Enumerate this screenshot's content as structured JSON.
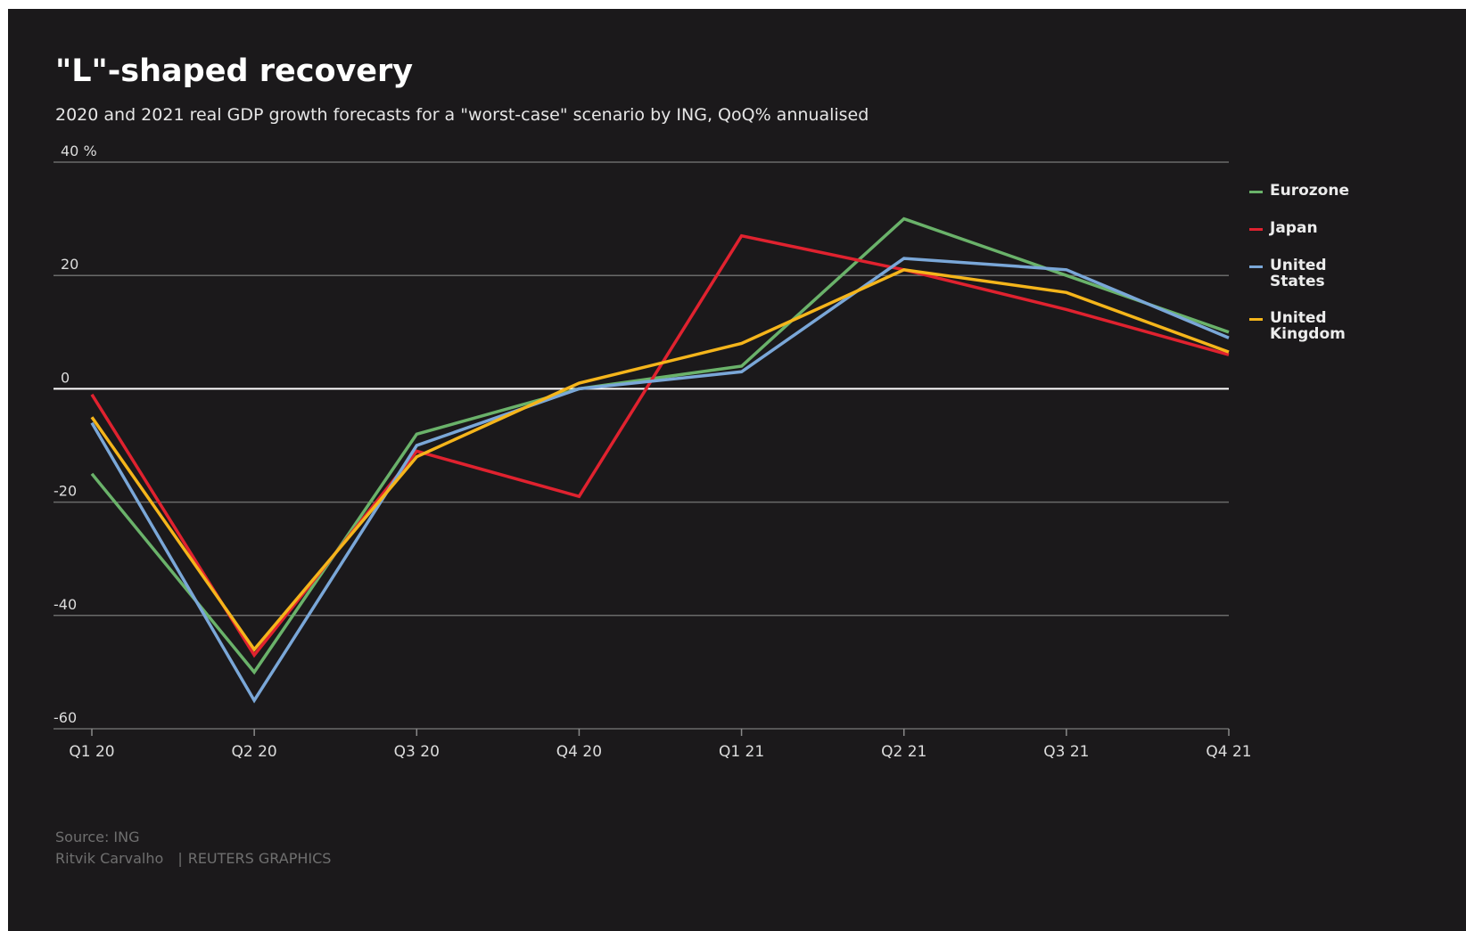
{
  "chart_data": {
    "type": "line",
    "title": "\"L\"-shaped recovery",
    "subtitle": "2020 and 2021 real GDP growth forecasts for a \"worst-case\" scenario by ING, QoQ% annualised",
    "categories": [
      "Q1 20",
      "Q2 20",
      "Q3 20",
      "Q4 20",
      "Q1 21",
      "Q2 21",
      "Q3 21",
      "Q4 21"
    ],
    "y_ticks": [
      {
        "value": 40,
        "label": "40 %"
      },
      {
        "value": 20,
        "label": "20"
      },
      {
        "value": 0,
        "label": "0"
      },
      {
        "value": -20,
        "label": "-20"
      },
      {
        "value": -40,
        "label": "-40"
      },
      {
        "value": -60,
        "label": "-60"
      }
    ],
    "ylim": [
      -60,
      40
    ],
    "grid": true,
    "legend_position": "right",
    "series": [
      {
        "name": "Eurozone",
        "color": "#6ab26a",
        "values": [
          -15,
          -50,
          -8,
          0,
          4,
          30,
          20,
          10
        ]
      },
      {
        "name": "Japan",
        "color": "#e0222f",
        "values": [
          -1,
          -47,
          -11,
          -19,
          27,
          21,
          14,
          6
        ]
      },
      {
        "name": "United States",
        "color": "#7aa7d8",
        "values": [
          -6,
          -55,
          -10,
          0,
          3,
          23,
          21,
          9
        ]
      },
      {
        "name": "United Kingdom",
        "color": "#f5b51b",
        "values": [
          -5,
          -46,
          -12,
          1,
          8,
          21,
          17,
          6.5
        ]
      }
    ]
  },
  "footer": {
    "source": "Source: ING",
    "author": "Ritvik Carvalho",
    "separator": "|",
    "publisher": "REUTERS GRAPHICS"
  }
}
